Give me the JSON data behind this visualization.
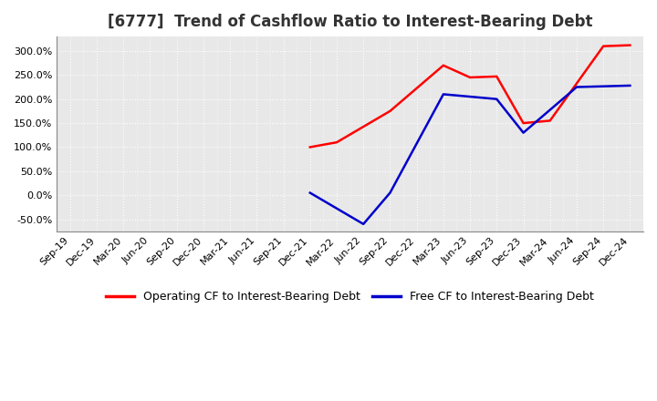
{
  "title": "[6777]  Trend of Cashflow Ratio to Interest-Bearing Debt",
  "x_labels": [
    "Sep-19",
    "Dec-19",
    "Mar-20",
    "Jun-20",
    "Sep-20",
    "Dec-20",
    "Mar-21",
    "Jun-21",
    "Sep-21",
    "Dec-21",
    "Mar-22",
    "Jun-22",
    "Sep-22",
    "Dec-22",
    "Mar-23",
    "Jun-23",
    "Sep-23",
    "Dec-23",
    "Mar-24",
    "Jun-24",
    "Sep-24",
    "Dec-24"
  ],
  "operating_color": "#ff0000",
  "free_color": "#0000cc",
  "background_color": "#ffffff",
  "plot_bg_color": "#e8e8e8",
  "grid_color": "#ffffff",
  "ylim": [
    -75,
    330
  ],
  "yticks": [
    -50.0,
    0.0,
    50.0,
    100.0,
    150.0,
    200.0,
    250.0,
    300.0
  ],
  "legend_op": "Operating CF to Interest-Bearing Debt",
  "legend_free": "Free CF to Interest-Bearing Debt",
  "title_fontsize": 12,
  "axis_fontsize": 8,
  "op_x": [
    9,
    10,
    12,
    14,
    15,
    16,
    17,
    18,
    20,
    21
  ],
  "op_y": [
    100,
    110,
    175,
    270,
    245,
    247,
    150,
    155,
    310,
    312
  ],
  "free_x": [
    9,
    11,
    12,
    14,
    15,
    16,
    17,
    19,
    21
  ],
  "free_y": [
    5,
    -60,
    5,
    210,
    205,
    200,
    130,
    225,
    228
  ]
}
